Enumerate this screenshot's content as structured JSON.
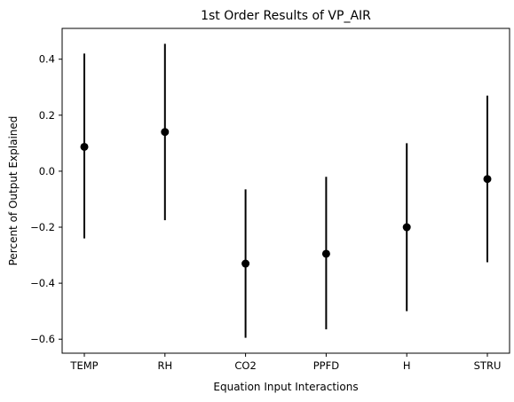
{
  "chart_data": {
    "type": "scatter",
    "title": "1st Order Results of VP_AIR",
    "xlabel": "Equation Input Interactions",
    "ylabel": "Percent of Output Explained",
    "categories": [
      "TEMP",
      "RH",
      "CO2",
      "PPFD",
      "H",
      "STRU"
    ],
    "values": [
      0.087,
      0.14,
      -0.33,
      -0.295,
      -0.2,
      -0.028
    ],
    "error_low": [
      -0.24,
      -0.175,
      -0.595,
      -0.565,
      -0.5,
      -0.325
    ],
    "error_high": [
      0.42,
      0.455,
      -0.065,
      -0.02,
      0.1,
      0.27
    ],
    "ylim": [
      -0.65,
      0.51
    ],
    "yticks": [
      -0.6,
      -0.4,
      -0.2,
      0.0,
      0.2,
      0.4
    ],
    "ytick_labels": [
      "−0.6",
      "−0.4",
      "−0.2",
      "0.0",
      "0.2",
      "0.4"
    ],
    "grid": false,
    "colors": {
      "marker": "#000000",
      "errorbar": "#000000",
      "axes": "#000000"
    }
  }
}
